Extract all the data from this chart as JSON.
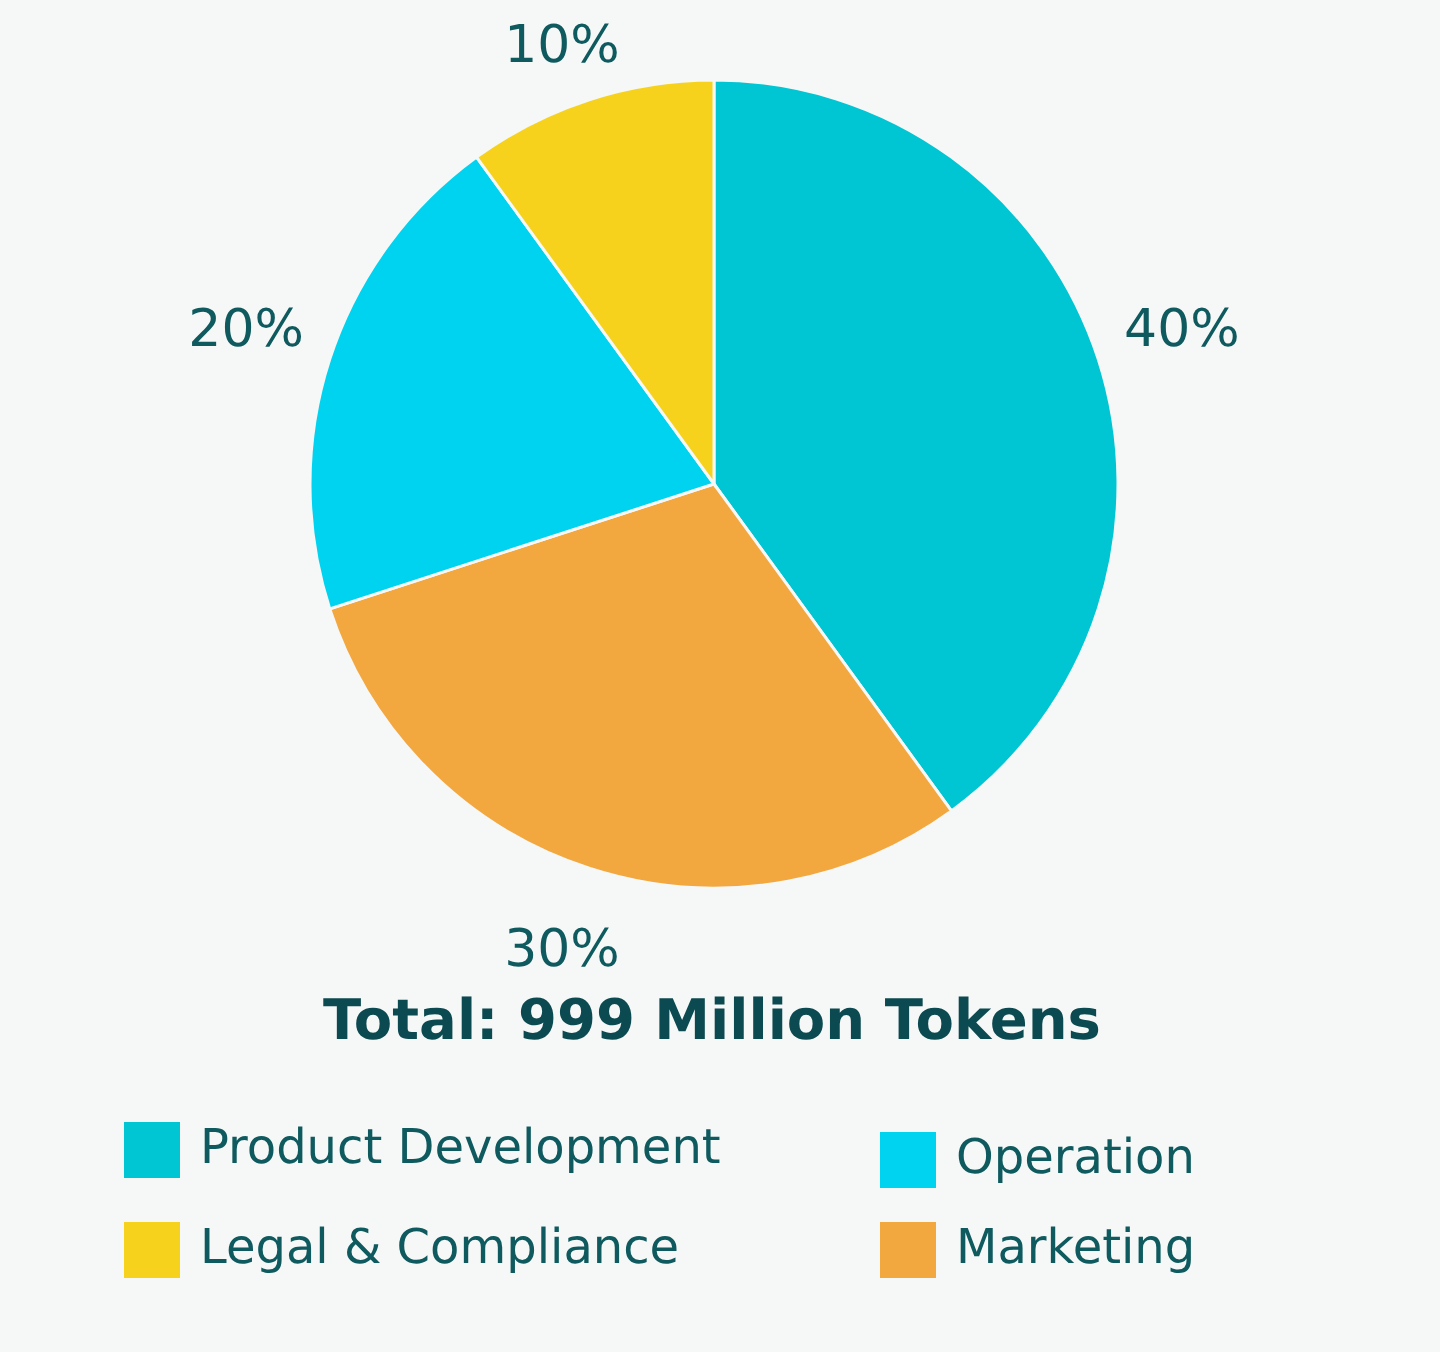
{
  "chart_data": {
    "type": "pie",
    "title": "Total: 999 Million Tokens",
    "categories": [
      "Product Development",
      "Marketing",
      "Operation",
      "Legal & Compliance"
    ],
    "values": [
      40,
      30,
      20,
      10
    ],
    "value_labels": [
      "40%",
      "30%",
      "20%",
      "10%"
    ],
    "colors": [
      "#00c5d3",
      "#f2a73f",
      "#00d3ef",
      "#f6d21c"
    ],
    "legend": "bottom"
  }
}
